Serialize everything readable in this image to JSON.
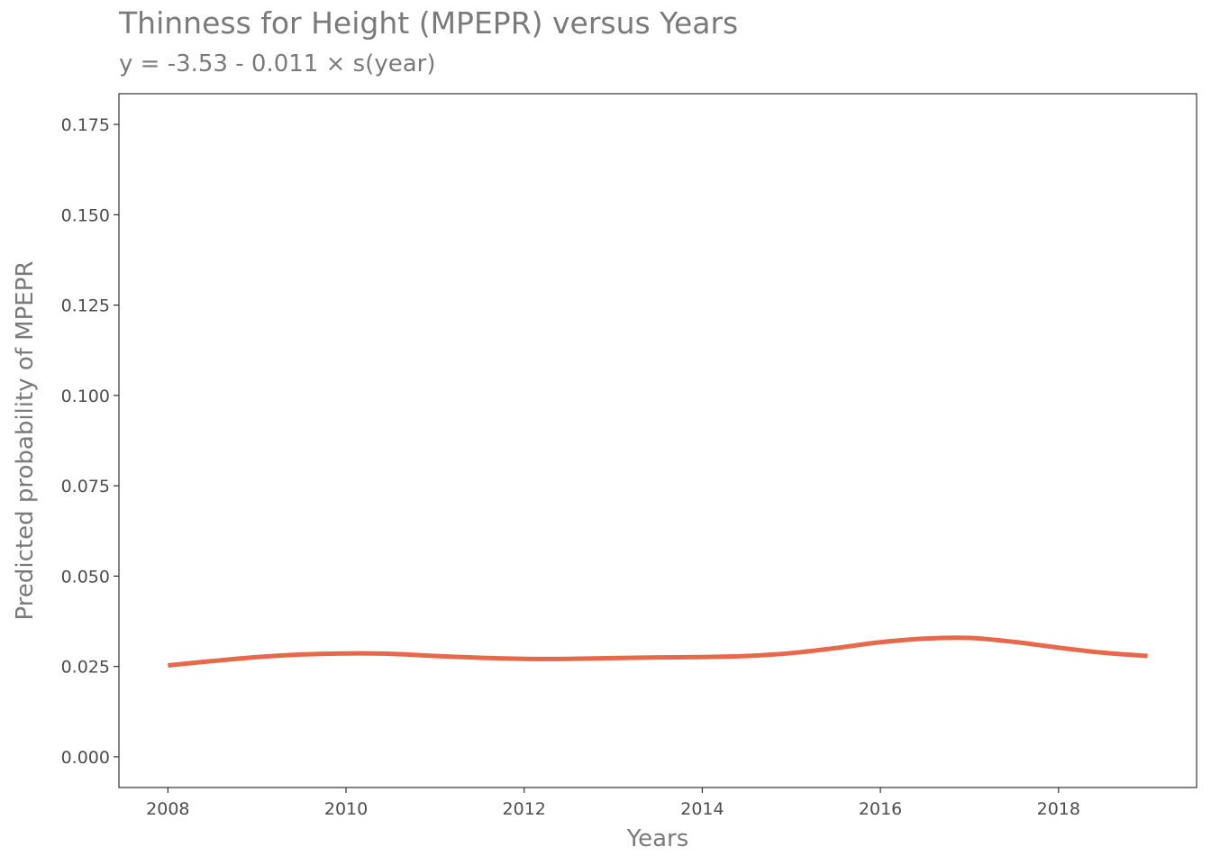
{
  "chart_data": {
    "type": "line",
    "title": "Thinness for Height (MPEPR) versus Years",
    "subtitle": "y = -3.53 - 0.011 × s(year)",
    "xlabel": "Years",
    "ylabel": "Predicted probability of MPEPR",
    "xlim": [
      2007.45,
      2019.55
    ],
    "ylim": [
      -0.0085,
      0.1835
    ],
    "x_ticks": [
      2008,
      2010,
      2012,
      2014,
      2016,
      2018
    ],
    "y_ticks": [
      0.0,
      0.025,
      0.05,
      0.075,
      0.1,
      0.125,
      0.15,
      0.175
    ],
    "y_tick_labels": [
      "0.000",
      "0.025",
      "0.050",
      "0.075",
      "0.100",
      "0.125",
      "0.150",
      "0.175"
    ],
    "grid": false,
    "series": [
      {
        "color": "#e8694a",
        "x": [
          2008,
          2008.5,
          2009,
          2009.5,
          2010,
          2010.5,
          2011,
          2011.5,
          2012,
          2012.5,
          2013,
          2013.5,
          2014,
          2014.5,
          2015,
          2015.5,
          2016,
          2016.5,
          2017,
          2017.5,
          2018,
          2018.5,
          2019
        ],
        "y": [
          0.0253,
          0.0265,
          0.0276,
          0.0283,
          0.0286,
          0.0285,
          0.0279,
          0.0274,
          0.0271,
          0.0271,
          0.0273,
          0.0275,
          0.0276,
          0.0279,
          0.0287,
          0.0301,
          0.0317,
          0.0327,
          0.0329,
          0.0318,
          0.0302,
          0.0288,
          0.0279
        ]
      }
    ]
  }
}
